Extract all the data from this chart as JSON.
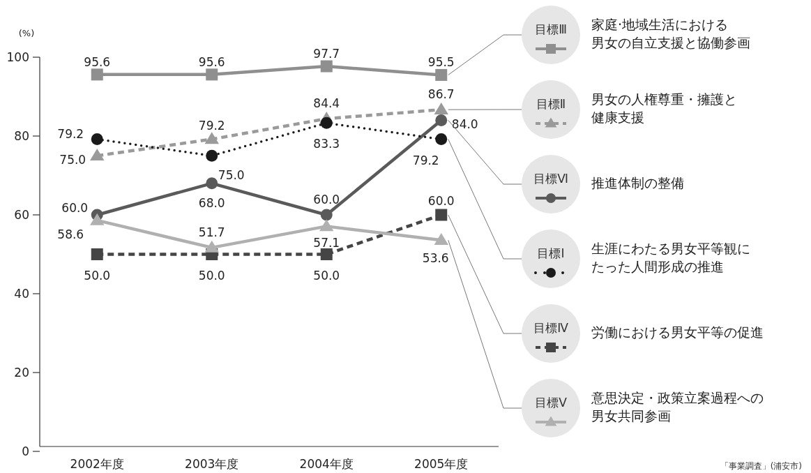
{
  "chart_data": {
    "type": "line",
    "ylabel": "(%)",
    "categories": [
      "2002年度",
      "2003年度",
      "2004年度",
      "2005年度"
    ],
    "ylim": [
      0,
      100
    ],
    "yticks": [
      0,
      20,
      40,
      60,
      80,
      100
    ],
    "legend": "right",
    "series": [
      {
        "name": "目標Ⅲ",
        "color": "#8f8f8f",
        "marker": "square",
        "line_style": "solid",
        "values": [
          95.6,
          95.6,
          97.7,
          95.5
        ],
        "value_labels": [
          "95.6",
          "95.6",
          "97.7",
          "95.5"
        ]
      },
      {
        "name": "目標Ⅱ",
        "color": "#9a9a9a",
        "marker": "triangle",
        "line_style": "dashed",
        "values": [
          75.0,
          79.2,
          84.4,
          86.7
        ],
        "value_labels": [
          "75.0",
          "79.2",
          "84.4",
          "86.7"
        ]
      },
      {
        "name": "目標Ⅵ",
        "color": "#5a5a5a",
        "marker": "circle",
        "line_style": "solid",
        "values": [
          60.0,
          68.0,
          60.0,
          84.0
        ],
        "value_labels": [
          "60.0",
          "68.0",
          "60.0",
          "84.0"
        ]
      },
      {
        "name": "目標Ⅰ",
        "color": "#1a1a1a",
        "marker": "circle",
        "line_style": "dotted",
        "values": [
          79.2,
          75.0,
          83.3,
          79.2
        ],
        "value_labels": [
          "79.2",
          "75.0",
          "83.3",
          "79.2"
        ]
      },
      {
        "name": "目標Ⅳ",
        "color": "#454545",
        "marker": "square",
        "line_style": "dashed",
        "values": [
          50.0,
          50.0,
          50.0,
          60.0
        ],
        "value_labels": [
          "50.0",
          "50.0",
          "50.0",
          "60.0"
        ]
      },
      {
        "name": "目標Ⅴ",
        "color": "#b0b0b0",
        "marker": "triangle",
        "line_style": "solid",
        "values": [
          58.6,
          51.7,
          57.1,
          53.6
        ],
        "value_labels": [
          "58.6",
          "51.7",
          "57.1",
          "53.6"
        ]
      }
    ],
    "annotations": [
      "家庭·地域生活における男女の自立支援と協働参画",
      "男女の人権尊重・擁護と健康支援",
      "推進体制の整備",
      "生涯にわたる男女平等観にたった人間形成の推進",
      "労働における男女平等の促進",
      "意思決定・政策立案過程への男女共同参画",
      "「事業調査」(浦安市)"
    ]
  }
}
